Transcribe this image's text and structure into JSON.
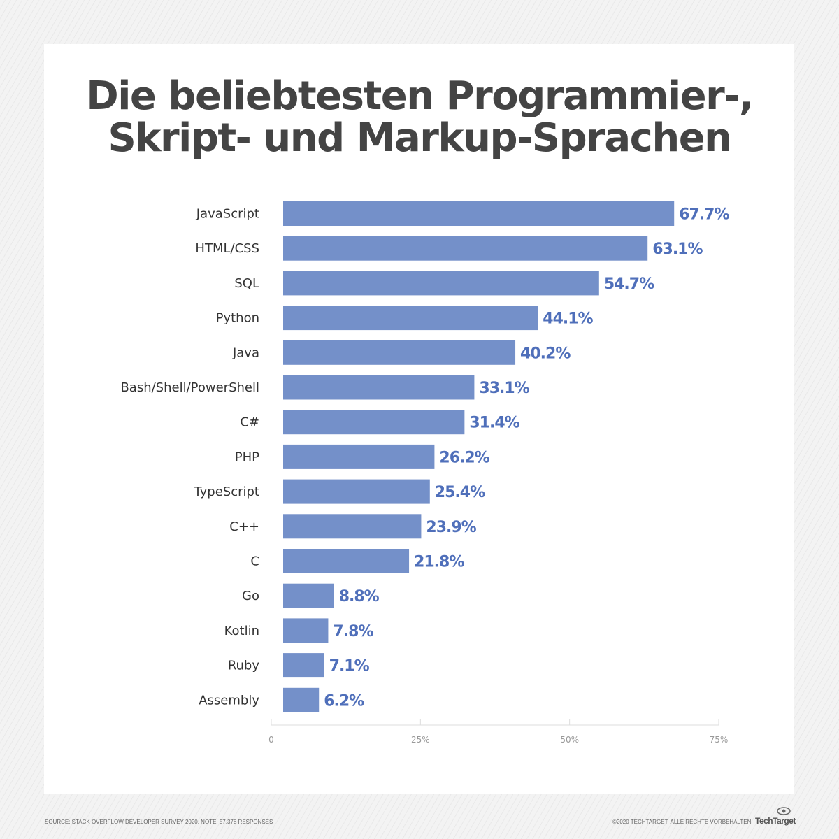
{
  "chart_data": {
    "type": "bar",
    "orientation": "horizontal",
    "title": "Die beliebtesten Programmier-, Skript- und Markup-Sprachen",
    "title_lines": [
      "Die beliebtesten Programmier-,",
      "Skript- und Markup-Sprachen"
    ],
    "categories": [
      "JavaScript",
      "HTML/CSS",
      "SQL",
      "Python",
      "Java",
      "Bash/Shell/PowerShell",
      "C#",
      "PHP",
      "TypeScript",
      "C++",
      "C",
      "Go",
      "Kotlin",
      "Ruby",
      "Assembly"
    ],
    "values": [
      67.7,
      63.1,
      54.7,
      44.1,
      40.2,
      33.1,
      31.4,
      26.2,
      25.4,
      23.9,
      21.8,
      8.8,
      7.8,
      7.1,
      6.2
    ],
    "data_labels": [
      "67.7%",
      "63.1%",
      "54.7%",
      "44.1%",
      "40.2%",
      "33.1%",
      "31.4%",
      "26.2%",
      "25.4%",
      "23.9%",
      "21.8%",
      "8.8%",
      "7.8%",
      "7.1%",
      "6.2%"
    ],
    "xlim": [
      0,
      75
    ],
    "x_ticks": [
      0,
      25,
      50,
      75
    ],
    "x_tick_labels": [
      "0",
      "25%",
      "50%",
      "75%"
    ],
    "grid": false,
    "colors": {
      "bar": "#7490c9",
      "label": "#4f6fba"
    }
  },
  "footer": {
    "source": "SOURCE: STACK OVERFLOW DEVELOPER SURVEY 2020, NOTE: 57,378 RESPONSES",
    "copyright": "©2020 TECHTARGET. ALLE RECHTE VORBEHALTEN.",
    "logo": "TechTarget"
  }
}
